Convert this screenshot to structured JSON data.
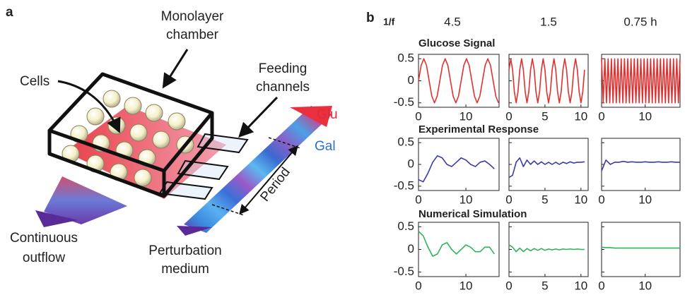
{
  "panel_a": {
    "label": "a",
    "monolayer_chamber": [
      "Monolayer",
      "chamber"
    ],
    "cells": "Cells",
    "feeding_channels": [
      "Feeding",
      "channels"
    ],
    "glu": "Glu",
    "gal": "Gal",
    "period": "Period",
    "continuous_outflow": [
      "Continuous",
      "outflow"
    ],
    "perturbation_medium": [
      "Perturbation",
      "medium"
    ]
  },
  "panel_b": {
    "label": "b",
    "freq_label": "1/f",
    "columns": [
      "4.5",
      "1.5",
      "0.75 h"
    ],
    "rows": [
      "Glucose Signal",
      "Experimental Response",
      "Numerical Simulation"
    ]
  },
  "chart_data": [
    {
      "type": "line",
      "color": "#e03030",
      "xlim": [
        0,
        17
      ],
      "ylim": [
        -0.6,
        0.6
      ],
      "xticks": [
        0,
        10
      ],
      "yticks": [
        0.5,
        0,
        -0.5
      ],
      "x": [
        0,
        0.5625,
        1.125,
        1.6875,
        2.25,
        2.8125,
        3.375,
        3.9375,
        4.5,
        5.0625,
        5.625,
        6.1875,
        6.75,
        7.3125,
        7.875,
        8.4375,
        9,
        9.5625,
        10.125,
        10.6875,
        11.25,
        11.8125,
        12.375,
        12.9375,
        13.5,
        14.0625,
        14.625,
        15.1875,
        15.75,
        16.3125,
        16.875
      ],
      "values": [
        0,
        0.35,
        0.5,
        0.35,
        0,
        -0.35,
        -0.5,
        -0.35,
        0,
        0.35,
        0.5,
        0.35,
        0,
        -0.35,
        -0.5,
        -0.35,
        0,
        0.35,
        0.5,
        0.35,
        0,
        -0.35,
        -0.5,
        -0.35,
        0,
        0.35,
        0.5,
        0.35,
        0,
        -0.35,
        -0.5
      ]
    },
    {
      "type": "line",
      "color": "#e03030",
      "xlim": [
        0,
        11
      ],
      "ylim": [
        -0.6,
        0.6
      ],
      "xticks": [
        0,
        5,
        10
      ],
      "yticks": [
        0.5,
        0,
        -0.5
      ],
      "x": [
        0,
        0.25,
        0.5,
        0.75,
        1,
        1.25,
        1.5,
        1.75,
        2,
        2.25,
        2.5,
        2.75,
        3,
        3.25,
        3.5,
        3.75,
        4,
        4.25,
        4.5,
        4.75,
        5,
        5.25,
        5.5,
        5.75,
        6,
        6.25,
        6.5,
        6.75,
        7,
        7.25,
        7.5,
        7.75,
        8,
        8.25,
        8.5,
        8.75,
        9,
        9.25,
        9.5,
        9.75,
        10,
        10.25,
        10.5
      ],
      "values": [
        0.25,
        0.5,
        0.25,
        -0.25,
        -0.5,
        -0.25,
        0.25,
        0.5,
        0.25,
        -0.25,
        -0.5,
        -0.25,
        0.25,
        0.5,
        0.25,
        -0.25,
        -0.5,
        -0.25,
        0.25,
        0.5,
        0.25,
        -0.25,
        -0.5,
        -0.25,
        0.25,
        0.5,
        0.25,
        -0.25,
        -0.5,
        -0.25,
        0.25,
        0.5,
        0.25,
        -0.25,
        -0.5,
        -0.25,
        0.25,
        0.5,
        0.25,
        -0.25,
        -0.5,
        -0.25,
        0.25
      ]
    },
    {
      "type": "line",
      "color": "#e03030",
      "xlim": [
        0,
        18
      ],
      "ylim": [
        -0.6,
        0.6
      ],
      "xticks": [
        0,
        10
      ],
      "yticks": [
        0.5,
        0,
        -0.5
      ],
      "x": [
        0,
        0.375,
        0.75,
        1.125,
        1.5,
        1.875,
        2.25,
        2.625,
        3,
        3.375,
        3.75,
        4.125,
        4.5,
        4.875,
        5.25,
        5.625,
        6,
        6.375,
        6.75,
        7.125,
        7.5,
        7.875,
        8.25,
        8.625,
        9,
        9.375,
        9.75,
        10.125,
        10.5,
        10.875,
        11.25,
        11.625,
        12,
        12.375,
        12.75,
        13.125,
        13.5,
        13.875,
        14.25,
        14.625,
        15,
        15.375,
        15.75,
        16.125,
        16.5,
        16.875,
        17.25,
        17.625,
        18
      ],
      "values": [
        0.5,
        -0.5,
        0.5,
        -0.5,
        0.5,
        -0.5,
        0.5,
        -0.5,
        0.5,
        -0.5,
        0.5,
        -0.5,
        0.5,
        -0.5,
        0.5,
        -0.5,
        0.5,
        -0.5,
        0.5,
        -0.5,
        0.5,
        -0.5,
        0.5,
        -0.5,
        0.5,
        -0.5,
        0.5,
        -0.5,
        0.5,
        -0.5,
        0.5,
        -0.5,
        0.5,
        -0.5,
        0.5,
        -0.5,
        0.5,
        -0.5,
        0.5,
        -0.5,
        0.5,
        -0.5,
        0.5,
        -0.5,
        0.5,
        -0.5,
        0.5,
        -0.5,
        0.5
      ]
    },
    {
      "type": "line",
      "color": "#3a3aa8",
      "xlim": [
        0,
        17
      ],
      "ylim": [
        -0.6,
        0.6
      ],
      "xticks": [
        0,
        10
      ],
      "yticks": [
        0.5,
        0,
        -0.5
      ],
      "x": [
        0,
        1,
        2,
        3,
        4,
        5,
        6,
        7,
        8,
        9,
        10,
        11,
        12,
        13,
        14,
        15,
        16
      ],
      "values": [
        -0.35,
        -0.4,
        -0.2,
        0.05,
        0.2,
        0.15,
        0.0,
        -0.05,
        0.05,
        0.15,
        0.1,
        0.0,
        -0.05,
        0.05,
        0.08,
        0.0,
        -0.1
      ]
    },
    {
      "type": "line",
      "color": "#3a3aa8",
      "xlim": [
        0,
        11
      ],
      "ylim": [
        -0.6,
        0.6
      ],
      "xticks": [
        0,
        5,
        10
      ],
      "yticks": [
        0.5,
        0,
        -0.5
      ],
      "x": [
        0,
        0.5,
        1,
        1.5,
        2,
        2.5,
        3,
        3.5,
        4,
        4.5,
        5,
        5.5,
        6,
        6.5,
        7,
        7.5,
        8,
        8.5,
        9,
        9.5,
        10,
        10.5
      ],
      "values": [
        -0.3,
        -0.25,
        0.05,
        0.15,
        -0.05,
        0.1,
        0.0,
        0.08,
        0.0,
        0.06,
        0.0,
        0.05,
        0.0,
        0.05,
        0.0,
        0.05,
        0.02,
        0.06,
        0.03,
        0.05,
        0.05,
        0.06
      ]
    },
    {
      "type": "line",
      "color": "#3a3aa8",
      "xlim": [
        0,
        18
      ],
      "ylim": [
        -0.6,
        0.6
      ],
      "xticks": [
        0,
        10
      ],
      "yticks": [
        0.5,
        0,
        -0.5
      ],
      "x": [
        0,
        1,
        2,
        3,
        4,
        5,
        6,
        7,
        8,
        9,
        10,
        11,
        12,
        13,
        14,
        15,
        16,
        17,
        18
      ],
      "values": [
        -0.15,
        0.1,
        0.0,
        0.05,
        0.05,
        0.07,
        0.05,
        0.06,
        0.05,
        0.05,
        0.06,
        0.05,
        0.05,
        0.06,
        0.05,
        0.05,
        0.06,
        0.05,
        0.05
      ]
    },
    {
      "type": "line",
      "color": "#2fb35a",
      "xlim": [
        0,
        17
      ],
      "ylim": [
        -0.6,
        0.6
      ],
      "xticks": [
        0,
        10
      ],
      "yticks": [
        0.5,
        0,
        -0.5
      ],
      "x": [
        0,
        1,
        2,
        3,
        4,
        5,
        6,
        7,
        8,
        9,
        10,
        11,
        12,
        13,
        14,
        15,
        16
      ],
      "values": [
        0.4,
        0.3,
        0.05,
        -0.15,
        -0.1,
        0.1,
        0.15,
        0.0,
        -0.1,
        0.0,
        0.1,
        0.05,
        -0.05,
        -0.05,
        0.05,
        0.05,
        -0.1
      ]
    },
    {
      "type": "line",
      "color": "#2fb35a",
      "xlim": [
        0,
        11
      ],
      "ylim": [
        -0.6,
        0.6
      ],
      "xticks": [
        0,
        5,
        10
      ],
      "yticks": [
        0.5,
        0,
        -0.5
      ],
      "x": [
        0,
        0.5,
        1,
        1.5,
        2,
        2.5,
        3,
        3.5,
        4,
        4.5,
        5,
        5.5,
        6,
        6.5,
        7,
        7.5,
        8,
        8.5,
        9,
        9.5,
        10,
        10.5
      ],
      "values": [
        0.1,
        0.05,
        -0.05,
        0.03,
        -0.05,
        0.02,
        -0.03,
        0.02,
        -0.02,
        0.02,
        -0.02,
        0.01,
        -0.01,
        0.01,
        -0.01,
        0.01,
        0.0,
        0.01,
        0.0,
        0.01,
        0.0,
        0.0
      ]
    },
    {
      "type": "line",
      "color": "#2fb35a",
      "xlim": [
        0,
        18
      ],
      "ylim": [
        -0.6,
        0.6
      ],
      "xticks": [
        0,
        10
      ],
      "yticks": [
        0.5,
        0,
        -0.5
      ],
      "x": [
        0,
        1,
        2,
        3,
        4,
        5,
        6,
        7,
        8,
        9,
        10,
        11,
        12,
        13,
        14,
        15,
        16,
        17,
        18
      ],
      "values": [
        0.05,
        0.04,
        0.04,
        0.03,
        0.03,
        0.03,
        0.03,
        0.03,
        0.03,
        0.03,
        0.03,
        0.03,
        0.03,
        0.03,
        0.03,
        0.03,
        0.03,
        0.03,
        0.03
      ]
    }
  ]
}
